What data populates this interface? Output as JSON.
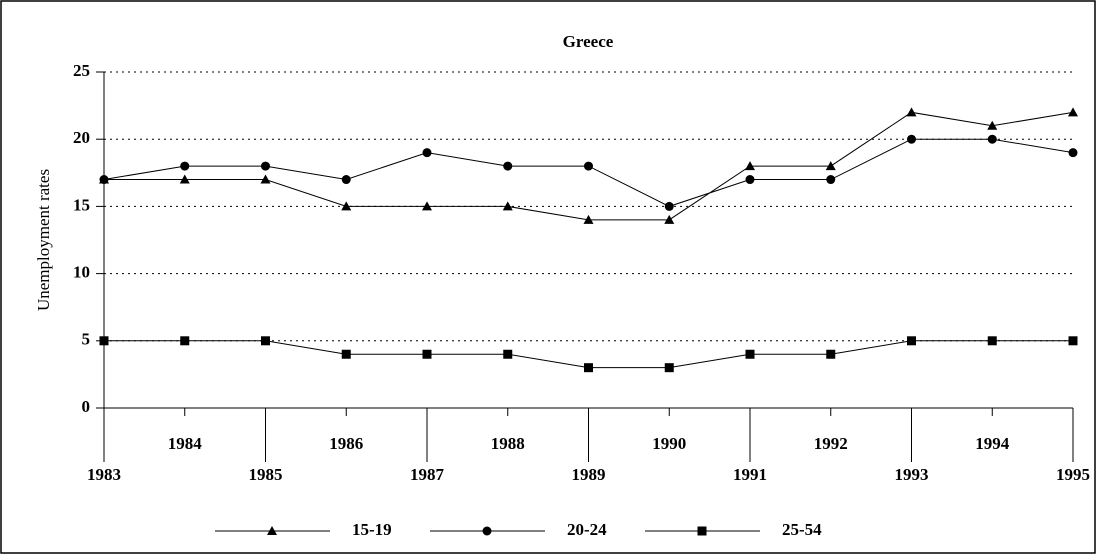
{
  "chart_data": {
    "type": "line",
    "title": "Greece",
    "y_label": "Unemployment rates",
    "x": [
      1983,
      1984,
      1985,
      1986,
      1987,
      1988,
      1989,
      1990,
      1991,
      1992,
      1993,
      1994,
      1995
    ],
    "xlim": [
      1983,
      1995
    ],
    "ylim": [
      0,
      25
    ],
    "yticks": [
      0,
      5,
      10,
      15,
      20,
      25
    ],
    "grid": true,
    "series": [
      {
        "name": "15-19",
        "color": "#000000",
        "marker": "triangle",
        "values": [
          17,
          17,
          17,
          15,
          15,
          15,
          14,
          14,
          18,
          18,
          22,
          21,
          22
        ]
      },
      {
        "name": "20-24",
        "color": "#000000",
        "marker": "circle",
        "values": [
          17,
          18,
          18,
          17,
          19,
          18,
          18,
          15,
          17,
          17,
          20,
          20,
          19
        ]
      },
      {
        "name": "25-54",
        "color": "#000000",
        "marker": "square",
        "values": [
          5,
          5,
          5,
          4,
          4,
          4,
          3,
          3,
          4,
          4,
          5,
          5,
          5
        ]
      }
    ]
  }
}
